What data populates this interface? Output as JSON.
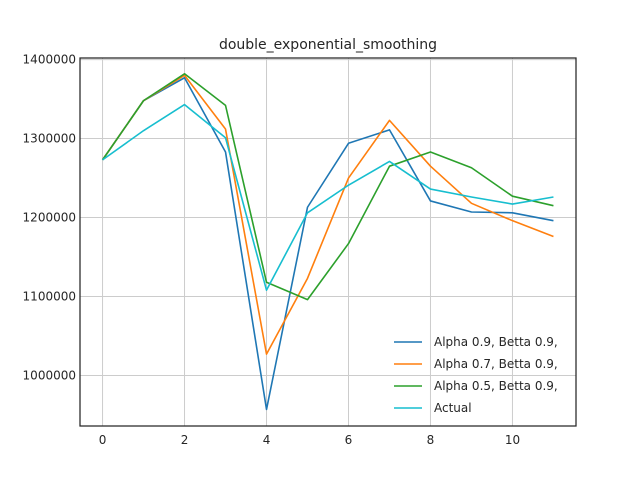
{
  "chart_data": {
    "type": "line",
    "title": "double_exponential_smoothing",
    "xlabel": "",
    "ylabel": "",
    "x": [
      0,
      1,
      2,
      3,
      4,
      5,
      6,
      7,
      8,
      9,
      10,
      11
    ],
    "xlim": [
      -0.55,
      11.55
    ],
    "ylim": [
      936000,
      1402000
    ],
    "xticks": [
      0,
      2,
      4,
      6,
      8,
      10
    ],
    "yticks": [
      1000000,
      1100000,
      1200000,
      1300000,
      1400000
    ],
    "grid": true,
    "legend_position": "lower-right",
    "series": [
      {
        "name": "Alpha 0.9, Betta 0.9,",
        "color": "#1f77b4",
        "values": [
          1273000,
          1348000,
          1377000,
          1283000,
          957000,
          1213000,
          1294000,
          1311000,
          1221000,
          1207000,
          1206000,
          1196000
        ]
      },
      {
        "name": "Alpha 0.7, Betta 0.9,",
        "color": "#ff7f0e",
        "values": [
          1273000,
          1348000,
          1380000,
          1312000,
          1027000,
          1123000,
          1250000,
          1323000,
          1265000,
          1218000,
          1196000,
          1176000
        ]
      },
      {
        "name": "Alpha 0.5, Betta 0.9,",
        "color": "#2ca02c",
        "values": [
          1273000,
          1348000,
          1382000,
          1342000,
          1118000,
          1096000,
          1167000,
          1265000,
          1283000,
          1263000,
          1227000,
          1215000
        ]
      },
      {
        "name": "Actual",
        "color": "#17becf",
        "values": [
          1273000,
          1310000,
          1343000,
          1301000,
          1108000,
          1206000,
          1241000,
          1271000,
          1236000,
          1226000,
          1217000,
          1226000
        ]
      }
    ]
  }
}
